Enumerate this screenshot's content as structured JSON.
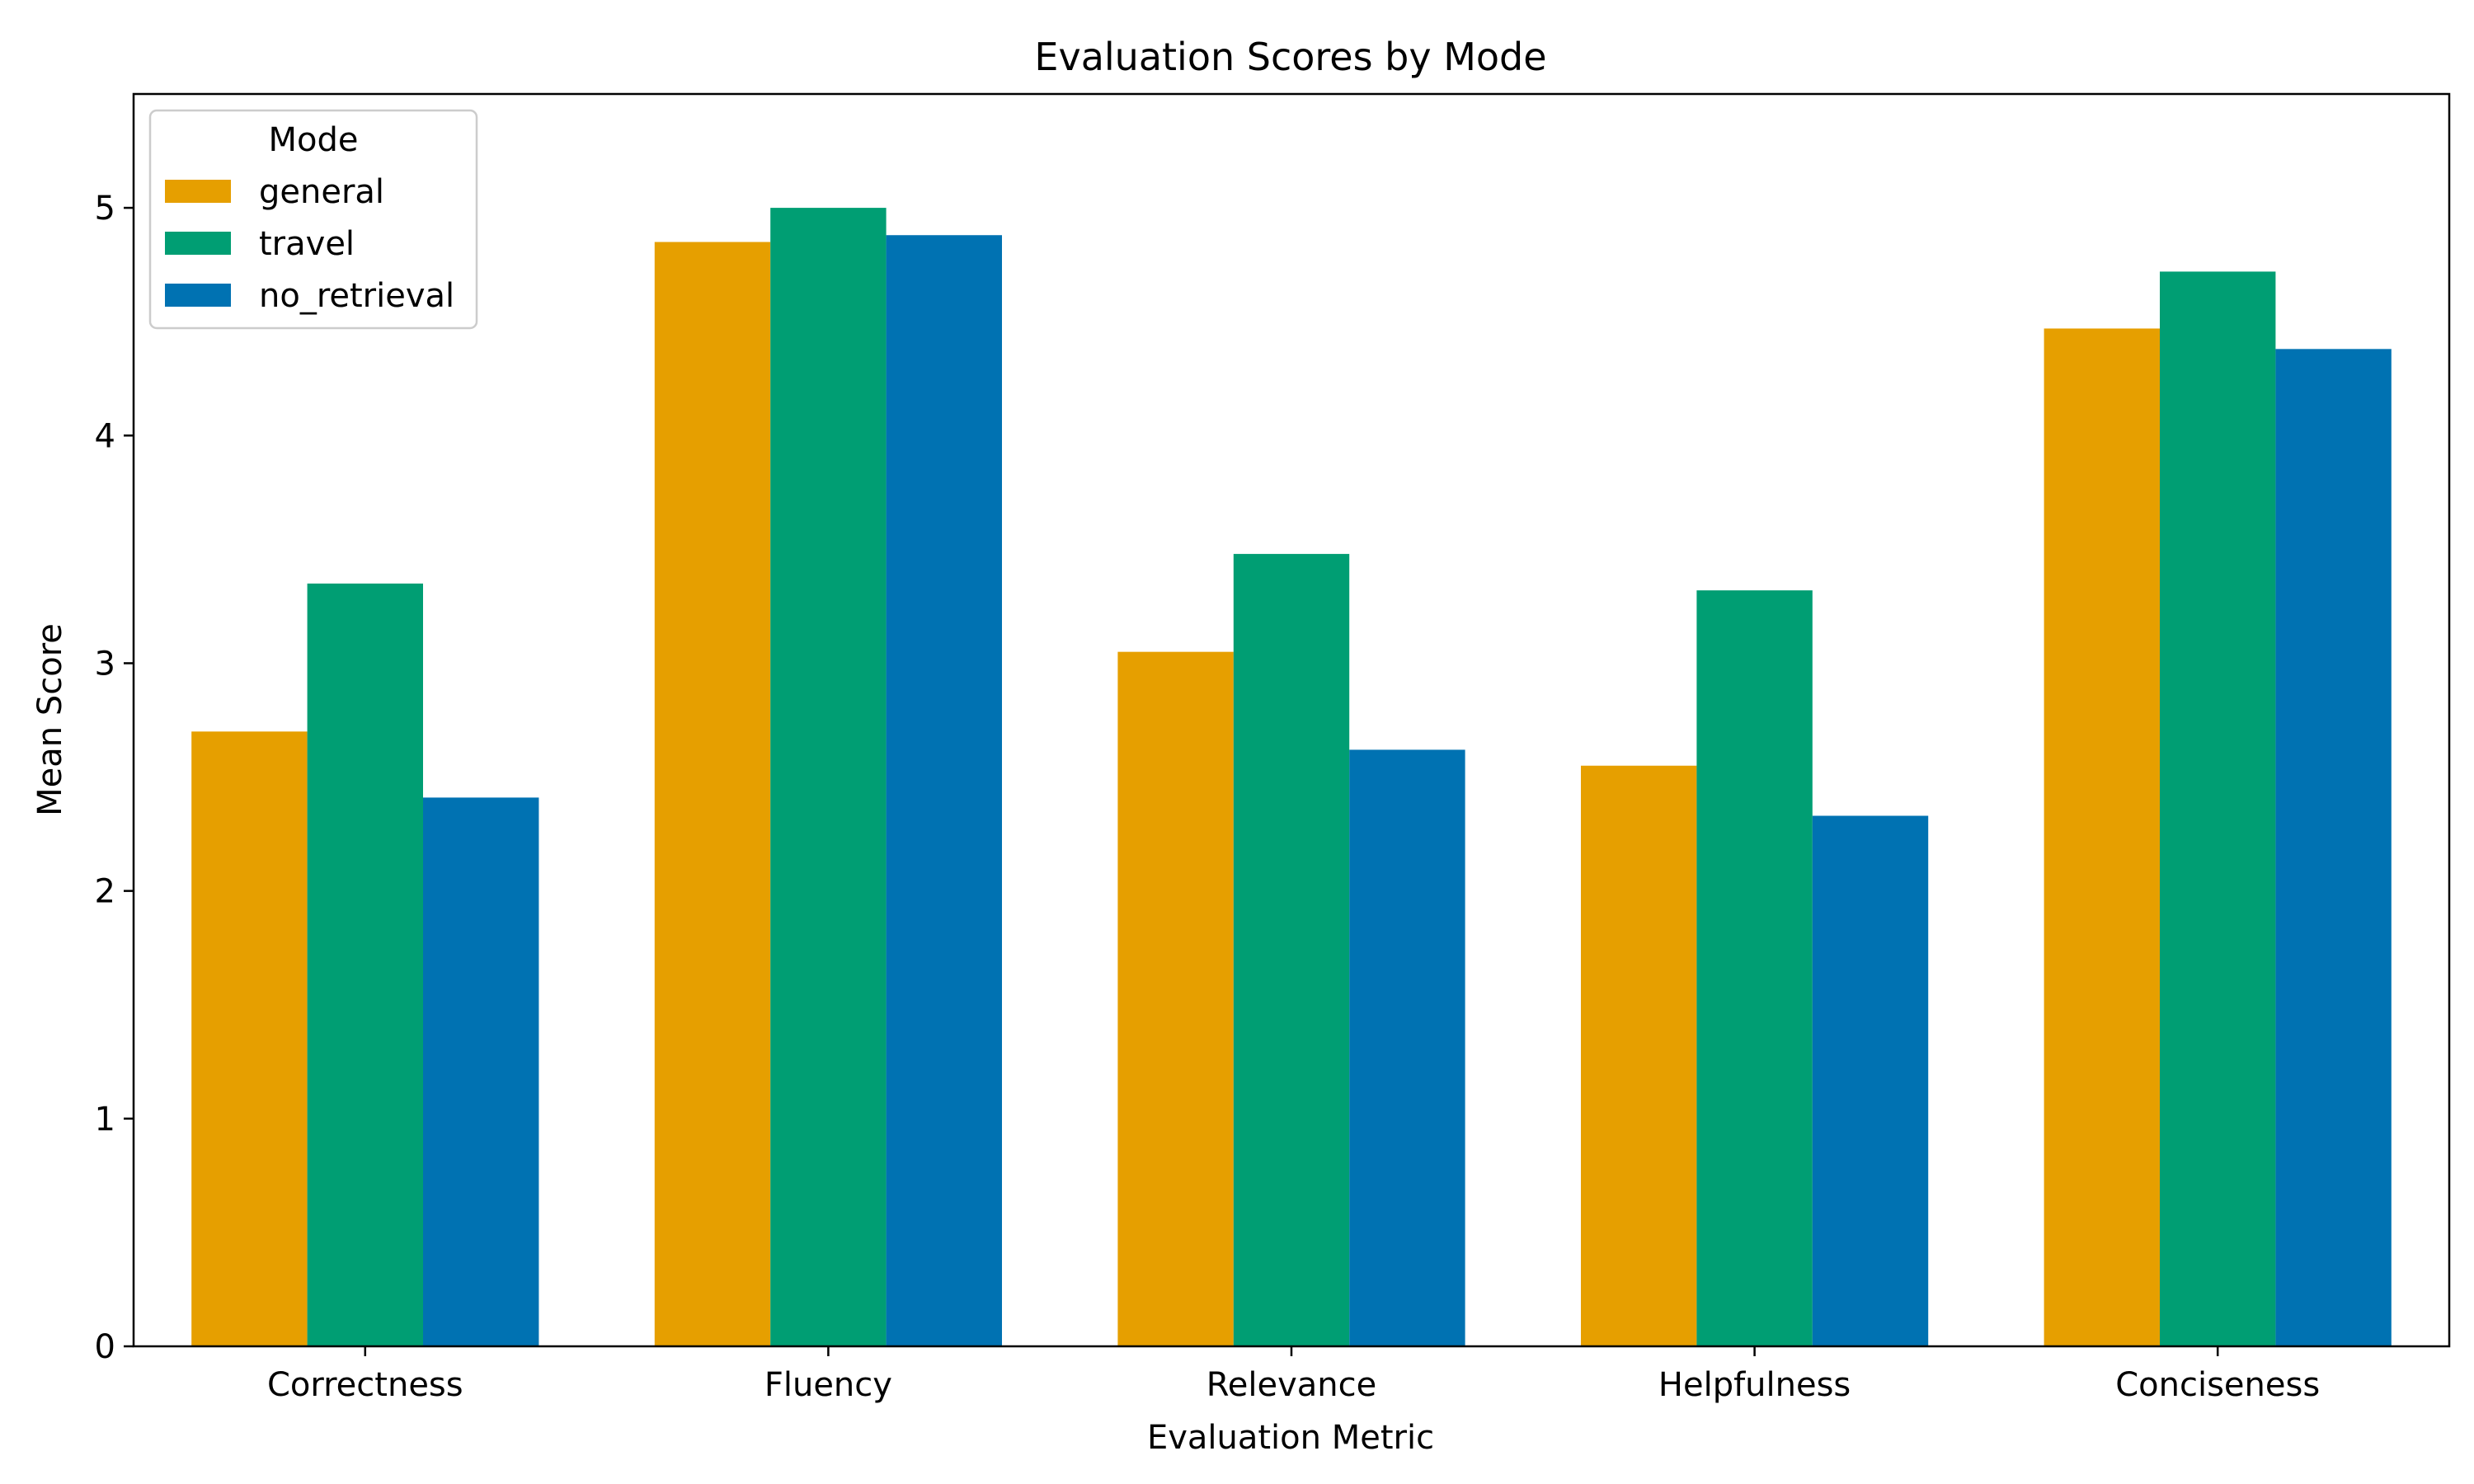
{
  "chart_data": {
    "type": "bar",
    "title": "Evaluation Scores by Mode",
    "xlabel": "Evaluation Metric",
    "ylabel": "Mean Score",
    "categories": [
      "Correctness",
      "Fluency",
      "Relevance",
      "Helpfulness",
      "Conciseness"
    ],
    "series": [
      {
        "name": "general",
        "color": "#E69F00",
        "values": [
          2.7,
          4.85,
          3.05,
          2.55,
          4.47
        ]
      },
      {
        "name": "travel",
        "color": "#009E73",
        "values": [
          3.35,
          5.0,
          3.48,
          3.32,
          4.72
        ]
      },
      {
        "name": "no_retrieval",
        "color": "#0072B2",
        "values": [
          2.41,
          4.88,
          2.62,
          2.33,
          4.38
        ]
      }
    ],
    "ylim": [
      0,
      5.5
    ],
    "yticks": [
      0,
      1,
      2,
      3,
      4,
      5
    ],
    "grid": false,
    "legend": {
      "title": "Mode",
      "placement": "top-left"
    }
  }
}
